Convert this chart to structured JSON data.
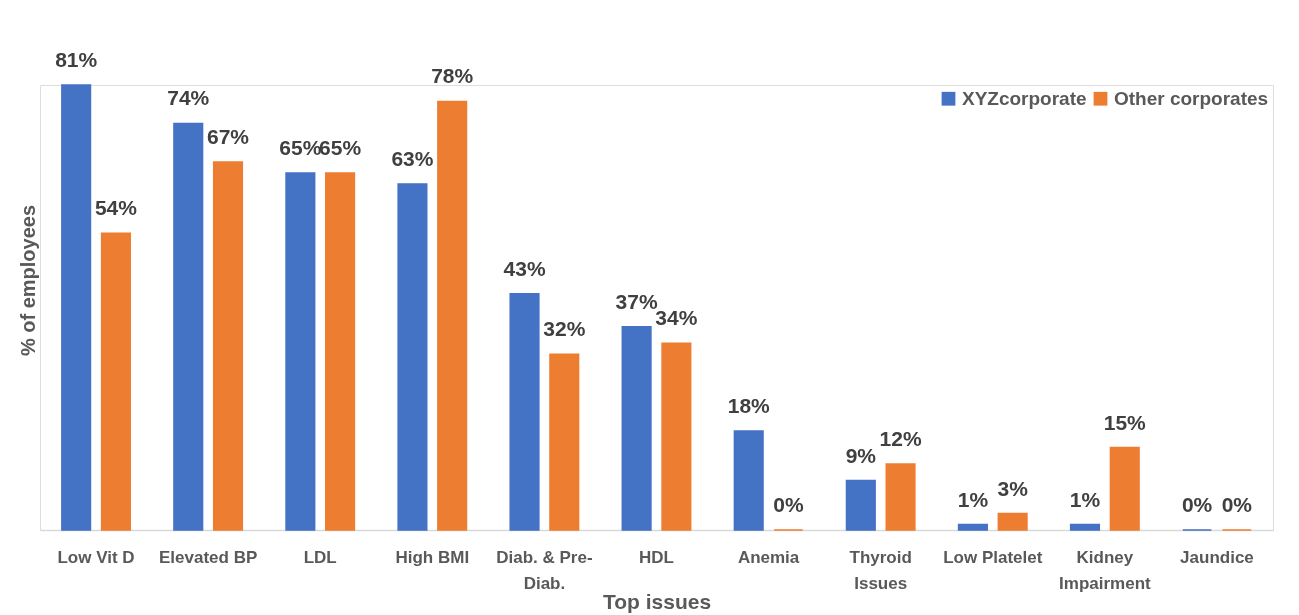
{
  "chart_data": {
    "type": "bar",
    "xlabel": "Top issues",
    "ylabel": "% of employees",
    "categories": [
      "Low Vit D",
      "Elevated BP",
      "LDL",
      "High BMI",
      "Diab. & Pre-Diab.",
      "HDL",
      "Anemia",
      "Thyroid Issues",
      "Low Platelet",
      "Kidney Impairment",
      "Jaundice"
    ],
    "series": [
      {
        "name": "XYZcorporate",
        "color": "#4472c4",
        "values": [
          81,
          74,
          65,
          63,
          43,
          37,
          18,
          9,
          1,
          1,
          0
        ],
        "value_labels": [
          "81%",
          "74%",
          "65%",
          "63%",
          "43%",
          "37%",
          "18%",
          "9%",
          "1%",
          "1%",
          "0%"
        ]
      },
      {
        "name": "Other corporates",
        "color": "#ed7d31",
        "values": [
          54,
          67,
          65,
          78,
          32,
          34,
          0,
          12,
          3,
          15,
          0
        ],
        "value_labels": [
          "54%",
          "67%",
          "65%",
          "78%",
          "32%",
          "34%",
          "0%",
          "12%",
          "3%",
          "15%",
          "0%"
        ]
      }
    ],
    "legend": "top right",
    "tick_labels": "x"
  }
}
